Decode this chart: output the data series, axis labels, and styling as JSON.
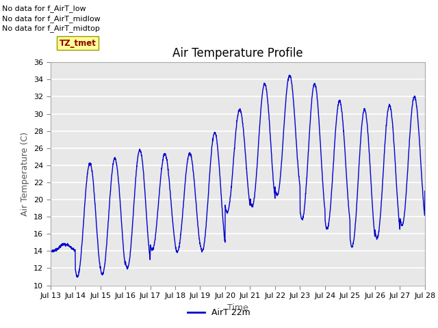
{
  "title": "Air Temperature Profile",
  "xlabel": "Time",
  "ylabel": "Air Temperature (C)",
  "ylim": [
    10,
    36
  ],
  "yticks": [
    10,
    12,
    14,
    16,
    18,
    20,
    22,
    24,
    26,
    28,
    30,
    32,
    34,
    36
  ],
  "xtick_labels": [
    "Jul 13",
    "Jul 14",
    "Jul 15",
    "Jul 16",
    "Jul 17",
    "Jul 18",
    "Jul 19",
    "Jul 20",
    "Jul 21",
    "Jul 22",
    "Jul 23",
    "Jul 24",
    "Jul 25",
    "Jul 26",
    "Jul 27",
    "Jul 28"
  ],
  "line_color": "#0000cc",
  "line_label": "AirT 22m",
  "legend_texts": [
    "No data for f_AirT_low",
    "No data for f_AirT_midlow",
    "No data for f_AirT_midtop"
  ],
  "tz_label": "TZ_tmet",
  "background_color": "#ffffff",
  "axes_bg_color": "#e8e8e8",
  "grid_color": "#ffffff",
  "title_fontsize": 12,
  "axis_label_fontsize": 9,
  "tick_fontsize": 8,
  "legend_fontsize": 9,
  "day_peaks": [
    14.8,
    24.2,
    24.8,
    25.8,
    25.3,
    25.4,
    27.8,
    30.5,
    33.5,
    34.5,
    33.5,
    31.5,
    30.5,
    31.0,
    32.0,
    21.0
  ],
  "day_troughs": [
    14.0,
    11.0,
    11.3,
    12.0,
    14.1,
    13.9,
    14.0,
    18.5,
    19.2,
    20.5,
    17.7,
    16.6,
    14.5,
    15.5,
    17.0,
    21.0
  ]
}
